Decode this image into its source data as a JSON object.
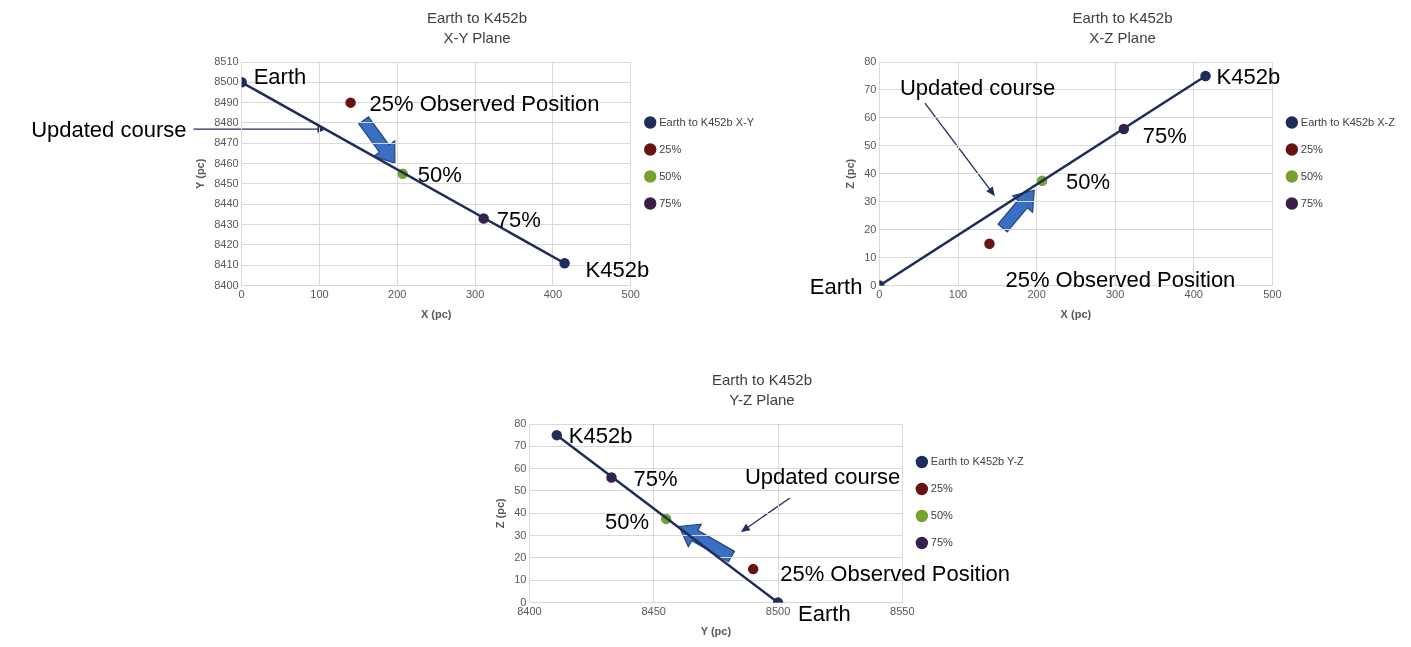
{
  "chart_data": [
    {
      "type": "scatter",
      "title": "Earth to K452b",
      "subtitle": "X-Y Plane",
      "xlabel": "X (pc)",
      "ylabel": "Y (pc)",
      "xlim": [
        0,
        500
      ],
      "xticks": [
        0,
        100,
        200,
        300,
        400,
        500
      ],
      "ylim": [
        8400,
        8510
      ],
      "yticks": [
        8400,
        8410,
        8420,
        8430,
        8440,
        8450,
        8460,
        8470,
        8480,
        8490,
        8500,
        8510
      ],
      "grid": true,
      "legend": "right",
      "marker": "circle",
      "series": [
        {
          "name": "Earth to K452b X-Y",
          "type": "line",
          "color": "#1f2d5c",
          "x": [
            0,
            415
          ],
          "values": [
            8500,
            8411
          ]
        },
        {
          "name": "25%",
          "color": "#6b1212",
          "x": [
            140
          ],
          "values": [
            8490
          ]
        },
        {
          "name": "50%",
          "color": "#77a12e",
          "x": [
            207
          ],
          "values": [
            8455
          ]
        },
        {
          "name": "75%",
          "color": "#3b1f4a",
          "x": [
            311
          ],
          "values": [
            8433
          ]
        }
      ],
      "annotations": [
        {
          "text": "Earth",
          "x": 0,
          "y": 8500
        },
        {
          "text": "K452b",
          "x": 415,
          "y": 8411
        },
        {
          "text": "25% Observed Position",
          "x": 140,
          "y": 8490
        },
        {
          "text": "50%",
          "x": 207,
          "y": 8455
        },
        {
          "text": "75%",
          "x": 311,
          "y": 8433
        },
        {
          "text": "Updated course",
          "x": 109,
          "y": 8477
        }
      ]
    },
    {
      "type": "scatter",
      "title": "Earth to K452b",
      "subtitle": "X-Z Plane",
      "xlabel": "X (pc)",
      "ylabel": "Z (pc)",
      "xlim": [
        0,
        500
      ],
      "xticks": [
        0,
        100,
        200,
        300,
        400,
        500
      ],
      "ylim": [
        0,
        80
      ],
      "yticks": [
        0,
        10,
        20,
        30,
        40,
        50,
        60,
        70,
        80
      ],
      "grid": true,
      "legend": "right",
      "marker": "circle",
      "series": [
        {
          "name": "Earth to K452b X-Z",
          "type": "line",
          "color": "#1f2d5c",
          "x": [
            0,
            415
          ],
          "values": [
            0,
            75
          ]
        },
        {
          "name": "25%",
          "color": "#6b1212",
          "x": [
            140
          ],
          "values": [
            15
          ]
        },
        {
          "name": "50%",
          "color": "#77a12e",
          "x": [
            207
          ],
          "values": [
            37.5
          ]
        },
        {
          "name": "75%",
          "color": "#3b1f4a",
          "x": [
            311
          ],
          "values": [
            56
          ]
        }
      ],
      "annotations": [
        {
          "text": "Earth",
          "x": 0,
          "y": 0
        },
        {
          "text": "K452b",
          "x": 415,
          "y": 75
        },
        {
          "text": "25% Observed Position",
          "x": 140,
          "y": 15
        },
        {
          "text": "50%",
          "x": 207,
          "y": 37.5
        },
        {
          "text": "75%",
          "x": 311,
          "y": 56
        },
        "Updated course"
      ]
    },
    {
      "type": "scatter",
      "title": "Earth to K452b",
      "subtitle": "Y-Z Plane",
      "xlabel": "Y (pc)",
      "ylabel": "Z (pc)",
      "xlim": [
        8400,
        8550
      ],
      "xticks": [
        8400,
        8450,
        8500,
        8550
      ],
      "ylim": [
        0,
        80
      ],
      "yticks": [
        0,
        10,
        20,
        30,
        40,
        50,
        60,
        70,
        80
      ],
      "grid": true,
      "legend": "right",
      "marker": "circle",
      "series": [
        {
          "name": "Earth to K452b Y-Z",
          "type": "line",
          "color": "#1f2d5c",
          "x": [
            8500,
            8411
          ],
          "values": [
            0,
            75
          ]
        },
        {
          "name": "25%",
          "color": "#6b1212",
          "x": [
            8490
          ],
          "values": [
            15
          ]
        },
        {
          "name": "50%",
          "color": "#77a12e",
          "x": [
            8455
          ],
          "values": [
            37.5
          ]
        },
        {
          "name": "75%",
          "color": "#3b1f4a",
          "x": [
            8433
          ],
          "values": [
            56
          ]
        }
      ],
      "annotations": [
        {
          "text": "Earth",
          "x": 8500,
          "y": 0
        },
        {
          "text": "K452b",
          "x": 8411,
          "y": 75
        },
        {
          "text": "25% Observed Position",
          "x": 8490,
          "y": 15
        },
        {
          "text": "50%",
          "x": 8455,
          "y": 37.5
        },
        {
          "text": "75%",
          "x": 8433,
          "y": 56
        },
        "Updated course"
      ]
    }
  ]
}
